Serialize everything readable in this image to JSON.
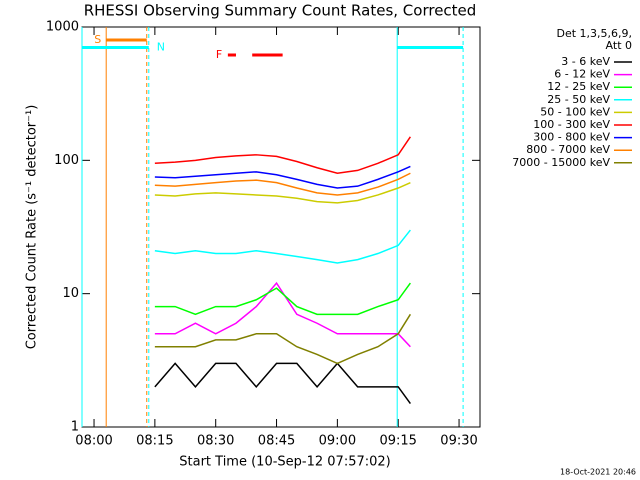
{
  "chart_data": {
    "type": "line",
    "title": "RHESSI Observing Summary Count Rates, Corrected",
    "x_label": "Start Time (10-Sep-12 07:57:02)",
    "y_label": "Corrected Count Rate (s⁻¹ detector⁻¹)",
    "legend_title": [
      "Det 1,3,5,6,9,",
      "Att 0"
    ],
    "footer": "18-Oct-2021 20:46",
    "log_y": true,
    "ylim": [
      1,
      1000
    ],
    "yticks": [
      1,
      10,
      100,
      1000
    ],
    "xlim": [
      "07:57:02",
      "09:35:10"
    ],
    "xticks": [
      "08:00",
      "08:15",
      "08:30",
      "08:45",
      "09:00",
      "09:15",
      "09:30"
    ],
    "x": [
      "08:15",
      "08:20",
      "08:25",
      "08:30",
      "08:35",
      "08:40",
      "08:45",
      "08:50",
      "08:55",
      "09:00",
      "09:05",
      "09:10",
      "09:15",
      "09:18"
    ],
    "series": [
      {
        "name": "3 - 6 keV",
        "color": "#000000",
        "values": [
          2,
          3,
          2,
          3,
          3,
          2,
          3,
          3,
          2,
          3,
          2,
          2,
          2,
          1.5
        ]
      },
      {
        "name": "6 - 12 keV",
        "color": "#ff00ff",
        "values": [
          5,
          5,
          6,
          5,
          6,
          8,
          12,
          7,
          6,
          5,
          5,
          5,
          5,
          4
        ]
      },
      {
        "name": "12 - 25 keV",
        "color": "#00ff00",
        "values": [
          8,
          8,
          7,
          8,
          8,
          9,
          11,
          8,
          7,
          7,
          7,
          8,
          9,
          12
        ]
      },
      {
        "name": "25 - 50 keV",
        "color": "#00ffff",
        "values": [
          21,
          20,
          21,
          20,
          20,
          21,
          20,
          19,
          18,
          17,
          18,
          20,
          23,
          30
        ]
      },
      {
        "name": "50 - 100 keV",
        "color": "#cccc00",
        "values": [
          55,
          54,
          56,
          57,
          56,
          55,
          54,
          52,
          49,
          48,
          50,
          55,
          62,
          68
        ]
      },
      {
        "name": "100 - 300 keV",
        "color": "#ff0000",
        "values": [
          95,
          97,
          100,
          105,
          108,
          110,
          107,
          98,
          88,
          80,
          84,
          95,
          110,
          150
        ]
      },
      {
        "name": "300 - 800 keV",
        "color": "#0000ff",
        "values": [
          75,
          74,
          76,
          78,
          80,
          82,
          78,
          72,
          66,
          62,
          64,
          72,
          82,
          90
        ]
      },
      {
        "name": "800 - 7000 keV",
        "color": "#ff8000",
        "values": [
          65,
          64,
          66,
          68,
          70,
          71,
          68,
          62,
          57,
          55,
          57,
          63,
          72,
          80
        ]
      },
      {
        "name": "7000 - 15000 keV",
        "color": "#808000",
        "values": [
          4,
          4,
          4,
          4.5,
          4.5,
          5,
          5,
          4,
          3.5,
          3,
          3.5,
          4,
          5,
          7
        ]
      }
    ],
    "flags": [
      {
        "label": "S",
        "color": "#ff8000",
        "level": 0,
        "vlines": true,
        "intervals": [
          [
            "08:03",
            "08:13"
          ]
        ]
      },
      {
        "label": "N",
        "color": "#00ffff",
        "level": 1,
        "vlines": true,
        "intervals": [
          [
            "07:57:02",
            "08:13:30"
          ],
          [
            "09:14:45",
            "09:31"
          ]
        ]
      },
      {
        "label": "F",
        "color": "#ff0000",
        "level": 2,
        "vlines": false,
        "intervals": [
          [
            "08:33",
            "08:35"
          ],
          [
            "08:39",
            "08:46:30"
          ]
        ]
      }
    ]
  }
}
